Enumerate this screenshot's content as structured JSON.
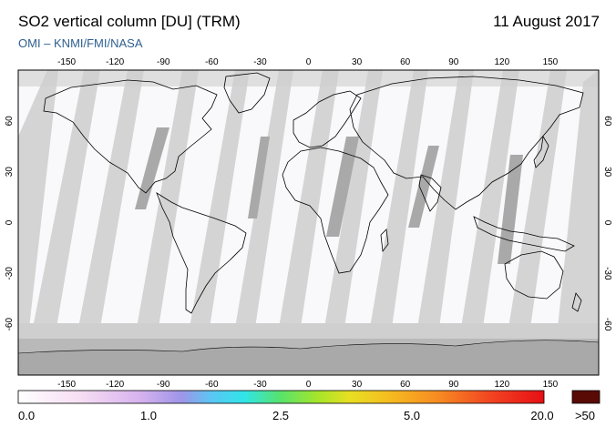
{
  "header": {
    "title": "SO2 vertical column [DU] (TRM)",
    "date": "11 August 2017",
    "credit": "OMI  –  KNMI/FMI/NASA"
  },
  "map": {
    "lon_ticks": [
      "-150",
      "-120",
      "-90",
      "-60",
      "-30",
      "0",
      "30",
      "60",
      "90",
      "120",
      "150"
    ],
    "lat_ticks": [
      "60",
      "30",
      "0",
      "-30",
      "-60"
    ]
  },
  "colorbar": {
    "labels": [
      "0.0",
      "1.0",
      "2.5",
      "5.0",
      "20.0"
    ],
    "overflow_label": ">50",
    "overflow_color": "#5a0a05"
  }
}
